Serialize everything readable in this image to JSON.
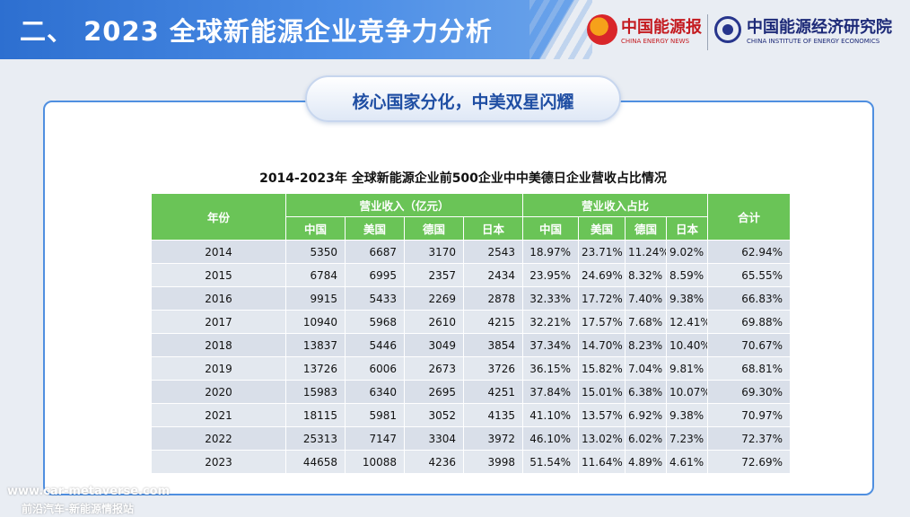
{
  "header": {
    "title": "二、 2023 全球新能源企业竞争力分析",
    "logo1_name": "中国能源报",
    "logo1_en": "CHINA ENERGY NEWS",
    "logo2_name": "中国能源经济研究院",
    "logo2_en": "CHINA INSTITUTE OF ENERGY ECONOMICS"
  },
  "subtitle": "核心国家分化，中美双星闪耀",
  "table": {
    "title": "2014-2023年 全球新能源企业前500企业中中美德日企业营收占比情况",
    "year_header": "年份",
    "revenue_header": "营业收入（亿元）",
    "share_header": "营业收入占比",
    "total_header": "合计",
    "countries": [
      "中国",
      "美国",
      "德国",
      "日本"
    ],
    "rows": [
      {
        "year": "2014",
        "rev": [
          "5350",
          "6687",
          "3170",
          "2543"
        ],
        "share": [
          "18.97%",
          "23.71%",
          "11.24%",
          "9.02%"
        ],
        "total": "62.94%"
      },
      {
        "year": "2015",
        "rev": [
          "6784",
          "6995",
          "2357",
          "2434"
        ],
        "share": [
          "23.95%",
          "24.69%",
          "8.32%",
          "8.59%"
        ],
        "total": "65.55%"
      },
      {
        "year": "2016",
        "rev": [
          "9915",
          "5433",
          "2269",
          "2878"
        ],
        "share": [
          "32.33%",
          "17.72%",
          "7.40%",
          "9.38%"
        ],
        "total": "66.83%"
      },
      {
        "year": "2017",
        "rev": [
          "10940",
          "5968",
          "2610",
          "4215"
        ],
        "share": [
          "32.21%",
          "17.57%",
          "7.68%",
          "12.41%"
        ],
        "total": "69.88%"
      },
      {
        "year": "2018",
        "rev": [
          "13837",
          "5446",
          "3049",
          "3854"
        ],
        "share": [
          "37.34%",
          "14.70%",
          "8.23%",
          "10.40%"
        ],
        "total": "70.67%"
      },
      {
        "year": "2019",
        "rev": [
          "13726",
          "6006",
          "2673",
          "3726"
        ],
        "share": [
          "36.15%",
          "15.82%",
          "7.04%",
          "9.81%"
        ],
        "total": "68.81%"
      },
      {
        "year": "2020",
        "rev": [
          "15983",
          "6340",
          "2695",
          "4251"
        ],
        "share": [
          "37.84%",
          "15.01%",
          "6.38%",
          "10.07%"
        ],
        "total": "69.30%"
      },
      {
        "year": "2021",
        "rev": [
          "18115",
          "5981",
          "3052",
          "4135"
        ],
        "share": [
          "41.10%",
          "13.57%",
          "6.92%",
          "9.38%"
        ],
        "total": "70.97%"
      },
      {
        "year": "2022",
        "rev": [
          "25313",
          "7147",
          "3304",
          "3972"
        ],
        "share": [
          "46.10%",
          "13.02%",
          "6.02%",
          "7.23%"
        ],
        "total": "72.37%"
      },
      {
        "year": "2023",
        "rev": [
          "44658",
          "10088",
          "4236",
          "3998"
        ],
        "share": [
          "51.54%",
          "11.64%",
          "4.89%",
          "4.61%"
        ],
        "total": "72.69%"
      }
    ]
  },
  "watermark": {
    "url": "www.car-metaverse.com",
    "name": "前沿汽车-新能源情报站"
  },
  "colors": {
    "banner": "#2d6fd0",
    "table_header": "#6ac457",
    "row_bg": "#d9dfe9",
    "subtitle_text": "#1f4ea3"
  }
}
